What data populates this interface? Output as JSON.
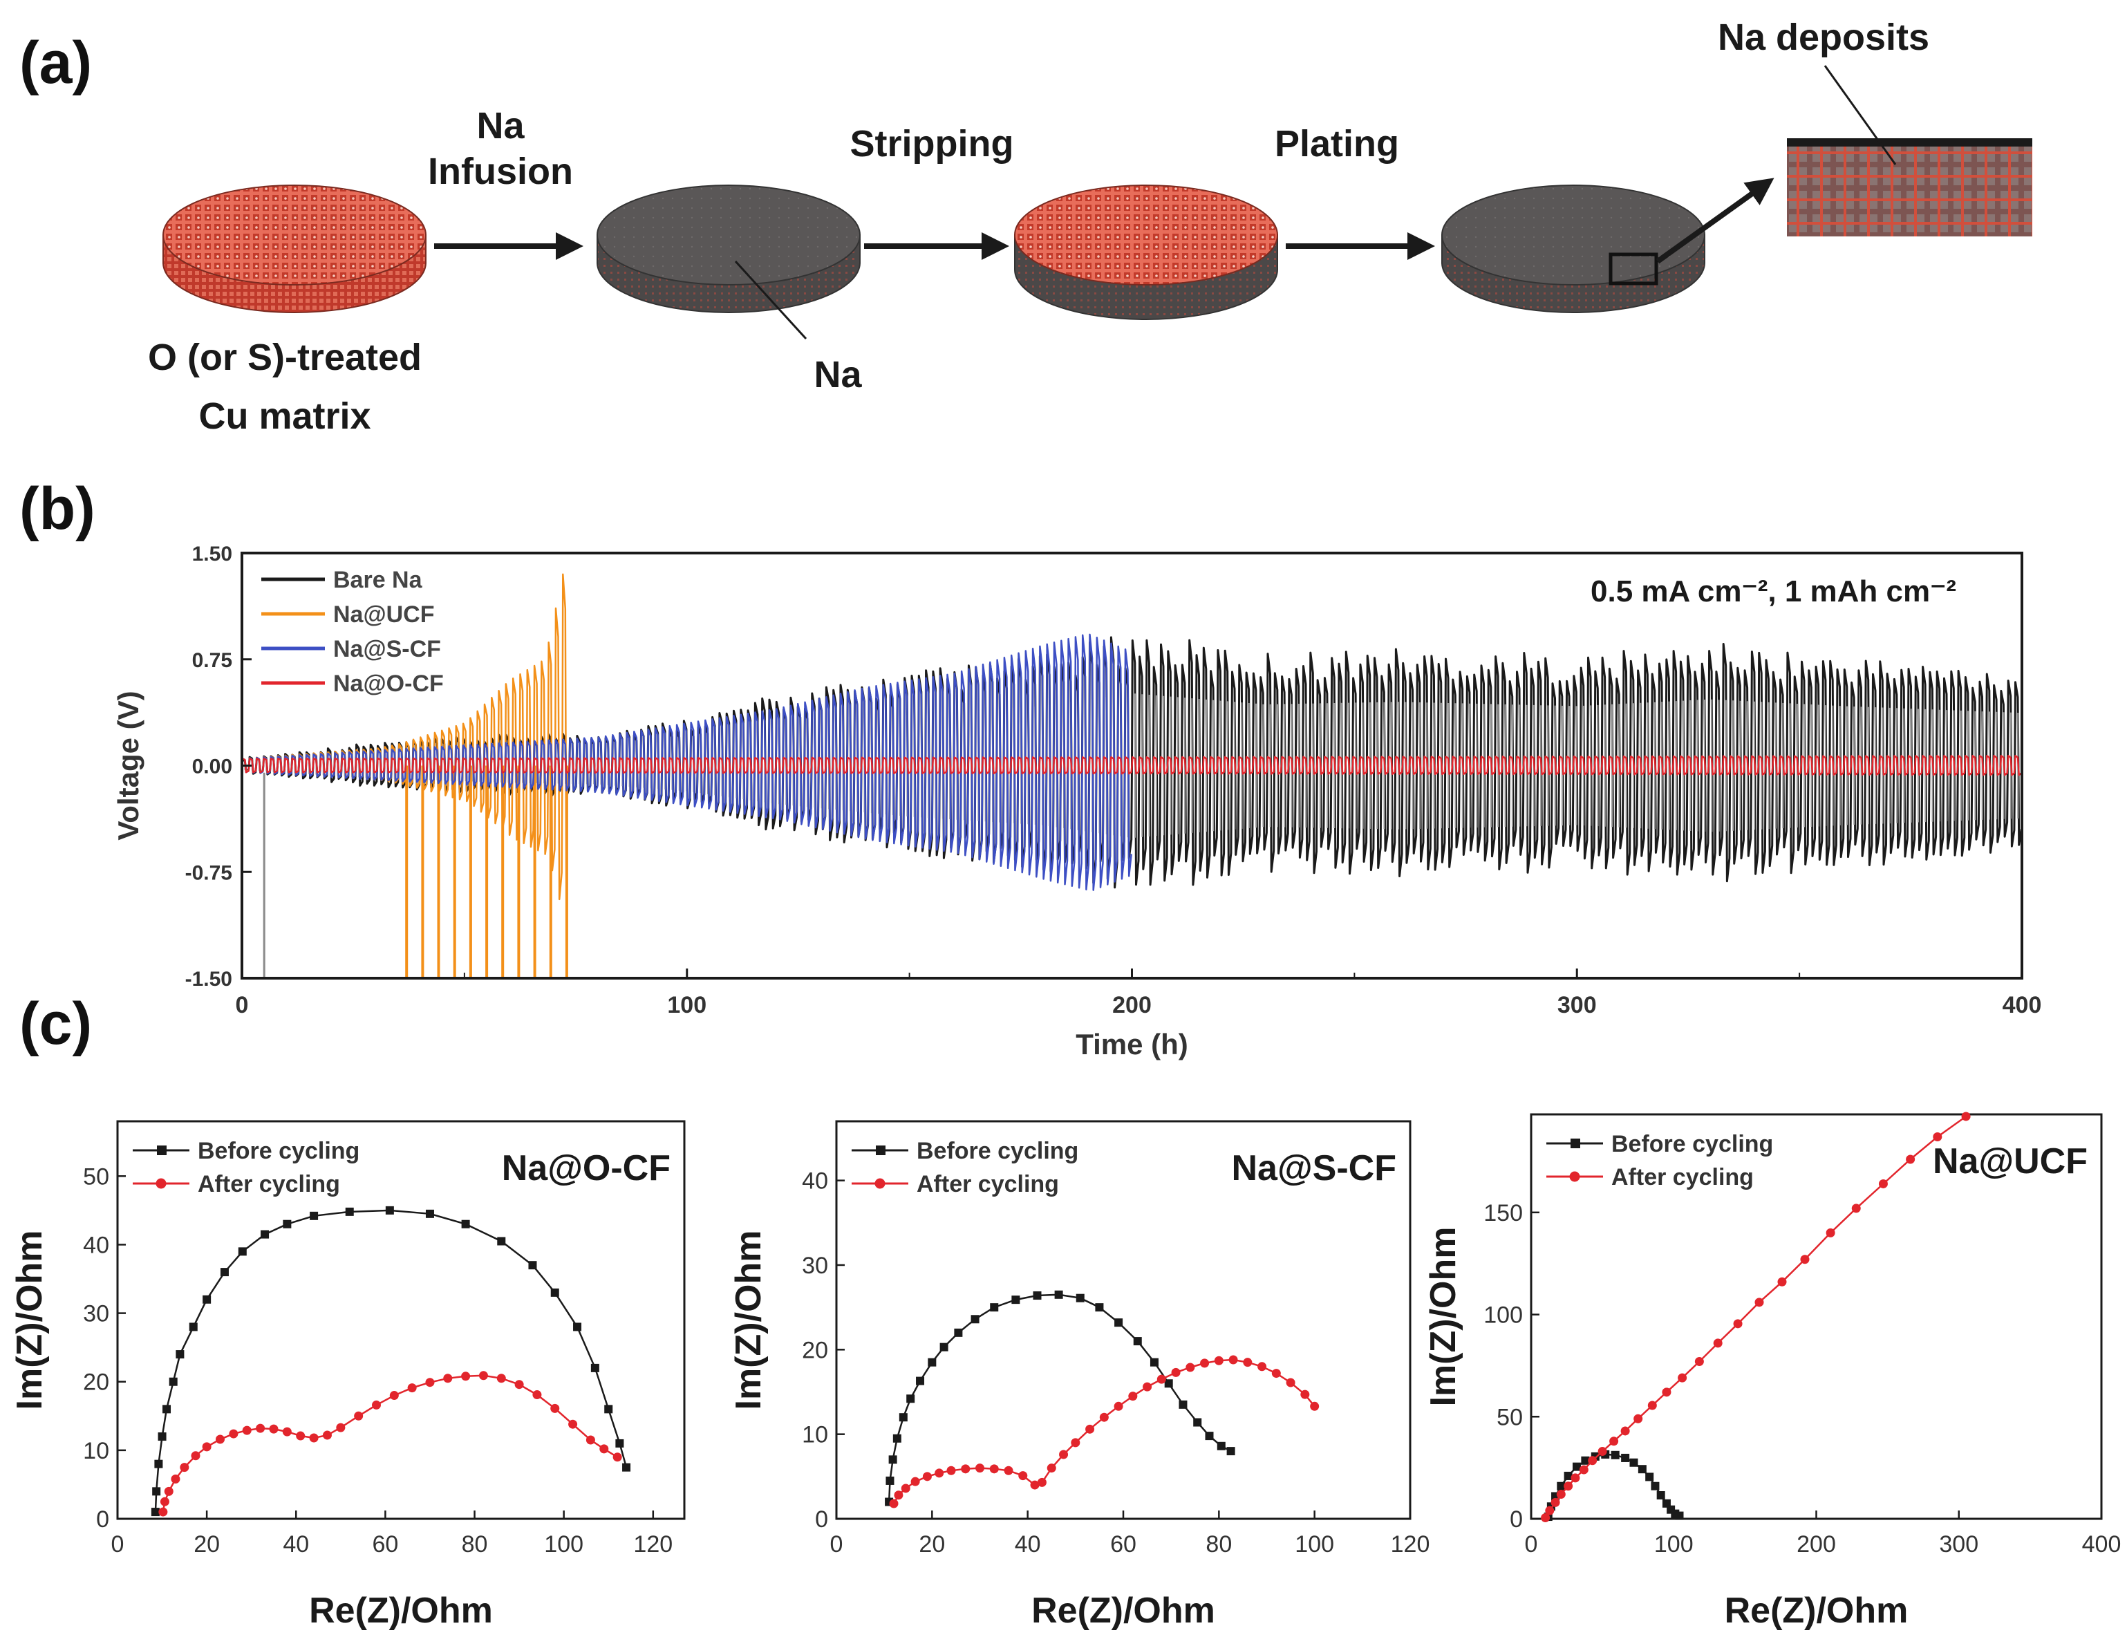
{
  "panel_a": {
    "label": "(a)",
    "step1": {
      "line1": "Na",
      "line2": "Infusion"
    },
    "step2": "Stripping",
    "step3": "Plating",
    "start": {
      "line1": "O (or S)-treated",
      "line2": "Cu matrix"
    },
    "na_label": "Na",
    "deposits_label": "Na deposits"
  },
  "panel_b_label": "(b)",
  "panel_c_label": "(c)",
  "colors": {
    "black": "#1a1a1a",
    "gray": "#9a9a9a",
    "orange": "#f39019",
    "blue": "#3d4fc4",
    "red": "#e2252c",
    "copper": "#d24f3c",
    "disk_dark": "#5d5a5a"
  },
  "chart_data": [
    {
      "id": "b",
      "type": "line",
      "title": "0.5 mA cm⁻², 1 mAh cm⁻²",
      "xlabel": "Time (h)",
      "ylabel": "Voltage (V)",
      "xlim": [
        0,
        400
      ],
      "ylim": [
        -1.5,
        1.5
      ],
      "xticks": [
        "0",
        "100",
        "200",
        "300",
        "400"
      ],
      "yticks": [
        "1.50",
        "0.75",
        "0.00",
        "-0.75",
        "-1.50"
      ],
      "legend_position": "top-left",
      "series": [
        {
          "name": "Bare Na",
          "color": "#1a1a1a",
          "t_end": 400,
          "envelope": [
            [
              0,
              0.05
            ],
            [
              30,
              0.15
            ],
            [
              60,
              0.2
            ],
            [
              80,
              0.22
            ],
            [
              100,
              0.3
            ],
            [
              120,
              0.45
            ],
            [
              150,
              0.6
            ],
            [
              180,
              0.7
            ],
            [
              200,
              0.85
            ],
            [
              230,
              0.72
            ],
            [
              260,
              0.75
            ],
            [
              300,
              0.7
            ],
            [
              330,
              0.78
            ],
            [
              360,
              0.7
            ],
            [
              400,
              0.62
            ]
          ]
        },
        {
          "name": "Na@UCF",
          "color": "#f39019",
          "t_end": 73,
          "envelope": [
            [
              0,
              0.05
            ],
            [
              30,
              0.12
            ],
            [
              35,
              0.15
            ],
            [
              50,
              0.3
            ],
            [
              60,
              0.6
            ],
            [
              68,
              0.75
            ],
            [
              73,
              1.5
            ]
          ],
          "overshoot": [
            [
              37,
              73
            ]
          ]
        },
        {
          "name": "Na@S-CF",
          "color": "#3d4fc4",
          "t_end": 200,
          "envelope": [
            [
              0,
              0.05
            ],
            [
              80,
              0.2
            ],
            [
              120,
              0.4
            ],
            [
              140,
              0.55
            ],
            [
              160,
              0.65
            ],
            [
              180,
              0.85
            ],
            [
              190,
              0.93
            ],
            [
              200,
              0.8
            ]
          ]
        },
        {
          "name": "Na@O-CF",
          "color": "#e2252c",
          "t_end": 400,
          "envelope": [
            [
              0,
              0.05
            ],
            [
              400,
              0.07
            ]
          ]
        }
      ]
    },
    {
      "id": "c1",
      "type": "scatter",
      "title": "Na@O-CF",
      "xlabel": "Re(Z)/Ohm",
      "ylabel": "Im(Z)/Ohm",
      "xlim": [
        0,
        127
      ],
      "ylim": [
        0,
        58
      ],
      "xticks": [
        0,
        20,
        40,
        60,
        80,
        100,
        120
      ],
      "yticks": [
        0,
        10,
        20,
        30,
        40,
        50
      ],
      "legend_position": "top-left",
      "series": [
        {
          "name": "Before cycling",
          "color": "#1a1a1a",
          "marker": "square",
          "points": [
            [
              8.5,
              1
            ],
            [
              8.7,
              4
            ],
            [
              9.2,
              8
            ],
            [
              10,
              12
            ],
            [
              11,
              16
            ],
            [
              12.5,
              20
            ],
            [
              14,
              24
            ],
            [
              17,
              28
            ],
            [
              20,
              32
            ],
            [
              24,
              36
            ],
            [
              28,
              39
            ],
            [
              33,
              41.5
            ],
            [
              38,
              43
            ],
            [
              44,
              44.2
            ],
            [
              52,
              44.8
            ],
            [
              61,
              45
            ],
            [
              70,
              44.5
            ],
            [
              78,
              43
            ],
            [
              86,
              40.5
            ],
            [
              93,
              37
            ],
            [
              98,
              33
            ],
            [
              103,
              28
            ],
            [
              107,
              22
            ],
            [
              110,
              16
            ],
            [
              112.5,
              11
            ],
            [
              114,
              7.5
            ]
          ]
        },
        {
          "name": "After cycling",
          "color": "#e2252c",
          "marker": "circle",
          "points": [
            [
              10.2,
              1
            ],
            [
              10.6,
              2.5
            ],
            [
              11.5,
              4
            ],
            [
              13,
              5.8
            ],
            [
              15,
              7.5
            ],
            [
              17.5,
              9.2
            ],
            [
              20,
              10.5
            ],
            [
              23,
              11.6
            ],
            [
              26,
              12.4
            ],
            [
              29,
              12.9
            ],
            [
              32,
              13.2
            ],
            [
              35,
              13.1
            ],
            [
              38,
              12.7
            ],
            [
              41,
              12.1
            ],
            [
              44,
              11.8
            ],
            [
              47,
              12.2
            ],
            [
              50,
              13.3
            ],
            [
              54,
              15
            ],
            [
              58,
              16.6
            ],
            [
              62,
              18
            ],
            [
              66,
              19.1
            ],
            [
              70,
              19.9
            ],
            [
              74,
              20.5
            ],
            [
              78,
              20.8
            ],
            [
              82,
              20.9
            ],
            [
              86,
              20.5
            ],
            [
              90,
              19.6
            ],
            [
              94,
              18.1
            ],
            [
              98,
              16.1
            ],
            [
              102,
              13.8
            ],
            [
              106,
              11.5
            ],
            [
              109,
              10.2
            ],
            [
              112,
              9
            ]
          ]
        }
      ]
    },
    {
      "id": "c2",
      "type": "scatter",
      "title": "Na@S-CF",
      "xlabel": "Re(Z)/Ohm",
      "ylabel": "Im(Z)/Ohm",
      "xlim": [
        0,
        120
      ],
      "ylim": [
        0,
        47
      ],
      "xticks": [
        0,
        20,
        40,
        60,
        80,
        100,
        120
      ],
      "yticks": [
        0,
        10,
        20,
        30,
        40
      ],
      "legend_position": "top-left",
      "series": [
        {
          "name": "Before cycling",
          "color": "#1a1a1a",
          "marker": "square",
          "points": [
            [
              11,
              2
            ],
            [
              11.2,
              4.5
            ],
            [
              11.8,
              7
            ],
            [
              12.7,
              9.5
            ],
            [
              14,
              12
            ],
            [
              15.5,
              14.2
            ],
            [
              17.5,
              16.3
            ],
            [
              20,
              18.5
            ],
            [
              22.5,
              20.3
            ],
            [
              25.5,
              22
            ],
            [
              29,
              23.6
            ],
            [
              33,
              25
            ],
            [
              37.5,
              25.9
            ],
            [
              42,
              26.4
            ],
            [
              46.5,
              26.5
            ],
            [
              51,
              26.1
            ],
            [
              55,
              25
            ],
            [
              59,
              23.2
            ],
            [
              63,
              21
            ],
            [
              66.5,
              18.5
            ],
            [
              69.5,
              16
            ],
            [
              72.5,
              13.5
            ],
            [
              75.5,
              11.4
            ],
            [
              78,
              9.8
            ],
            [
              80.5,
              8.6
            ],
            [
              82.5,
              8
            ]
          ]
        },
        {
          "name": "After cycling",
          "color": "#e2252c",
          "marker": "circle",
          "points": [
            [
              12,
              1.8
            ],
            [
              13,
              2.8
            ],
            [
              14.5,
              3.6
            ],
            [
              16.5,
              4.4
            ],
            [
              19,
              5
            ],
            [
              21.5,
              5.4
            ],
            [
              24,
              5.7
            ],
            [
              27,
              5.9
            ],
            [
              30,
              6
            ],
            [
              33,
              5.9
            ],
            [
              36,
              5.7
            ],
            [
              39,
              5.1
            ],
            [
              41.5,
              4
            ],
            [
              43,
              4.3
            ],
            [
              45,
              6
            ],
            [
              47.5,
              7.6
            ],
            [
              50,
              9
            ],
            [
              53,
              10.6
            ],
            [
              56,
              12
            ],
            [
              59,
              13.3
            ],
            [
              62,
              14.5
            ],
            [
              65,
              15.6
            ],
            [
              68,
              16.5
            ],
            [
              71,
              17.3
            ],
            [
              74,
              17.9
            ],
            [
              77,
              18.4
            ],
            [
              80,
              18.7
            ],
            [
              83,
              18.8
            ],
            [
              86,
              18.5
            ],
            [
              89,
              18
            ],
            [
              92,
              17.2
            ],
            [
              95,
              16.1
            ],
            [
              98,
              14.7
            ],
            [
              100,
              13.3
            ]
          ]
        }
      ]
    },
    {
      "id": "c3",
      "type": "scatter",
      "title": "Na@UCF",
      "xlabel": "Re(Z)/Ohm",
      "ylabel": "Im(Z)/Ohm",
      "xlim": [
        0,
        400
      ],
      "ylim": [
        0,
        198
      ],
      "xticks": [
        0,
        100,
        200,
        300,
        400
      ],
      "yticks": [
        0,
        50,
        100,
        150
      ],
      "legend_position": "top-left",
      "series": [
        {
          "name": "Before cycling",
          "color": "#1a1a1a",
          "marker": "square",
          "points": [
            [
              12,
              1
            ],
            [
              14,
              6
            ],
            [
              17,
              11
            ],
            [
              21,
              16
            ],
            [
              26,
              21
            ],
            [
              32,
              25.5
            ],
            [
              38,
              28.5
            ],
            [
              45,
              30.5
            ],
            [
              52,
              31.5
            ],
            [
              59,
              31.2
            ],
            [
              66,
              29.8
            ],
            [
              72,
              27.5
            ],
            [
              78,
              24.3
            ],
            [
              83,
              20.5
            ],
            [
              87,
              16
            ],
            [
              91,
              11.5
            ],
            [
              95,
              7.5
            ],
            [
              98,
              4.5
            ],
            [
              101,
              2.5
            ],
            [
              104,
              1.5
            ]
          ]
        },
        {
          "name": "After cycling",
          "color": "#e2252c",
          "marker": "circle",
          "points": [
            [
              10,
              0.5
            ],
            [
              13,
              4
            ],
            [
              17,
              8
            ],
            [
              21,
              12
            ],
            [
              26,
              16
            ],
            [
              31,
              20
            ],
            [
              37,
              24
            ],
            [
              43,
              28.5
            ],
            [
              50,
              33
            ],
            [
              58,
              38
            ],
            [
              66,
              43
            ],
            [
              75,
              49
            ],
            [
              85,
              55.5
            ],
            [
              95,
              62
            ],
            [
              106,
              69
            ],
            [
              118,
              77
            ],
            [
              131,
              86
            ],
            [
              145,
              95.5
            ],
            [
              160,
              106
            ],
            [
              176,
              116
            ],
            [
              192,
              127
            ],
            [
              210,
              140
            ],
            [
              228,
              152
            ],
            [
              247,
              164
            ],
            [
              266,
              176
            ],
            [
              285,
              187
            ],
            [
              305,
              197
            ]
          ]
        }
      ]
    }
  ]
}
